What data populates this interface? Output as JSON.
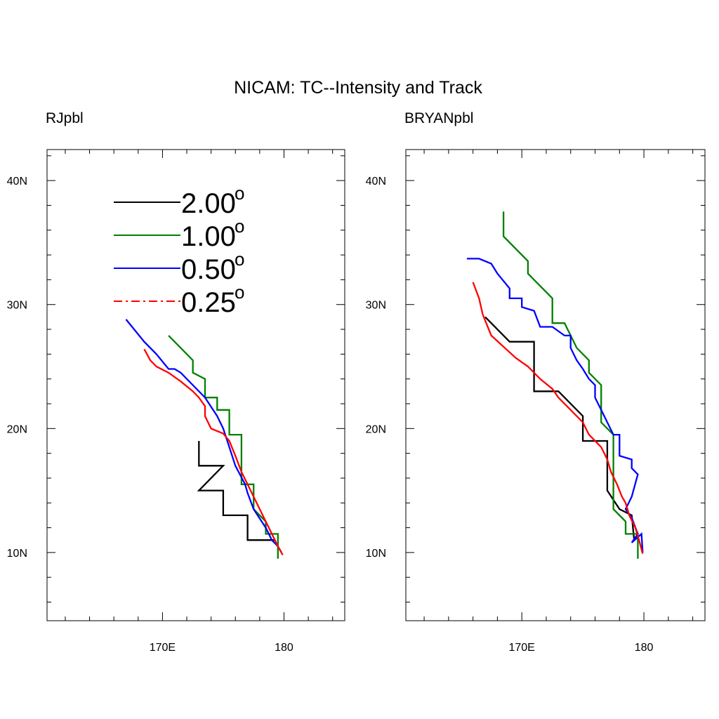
{
  "figure": {
    "title": "NICAM: TC--Intensity and Track"
  },
  "legend": {
    "placement": "top-left of left panel",
    "entries": [
      {
        "label": "2.00",
        "superscript": "o",
        "color": "#000000",
        "dash": "solid"
      },
      {
        "label": "1.00",
        "superscript": "o",
        "color": "#008000",
        "dash": "solid"
      },
      {
        "label": "0.50",
        "superscript": "o",
        "color": "#0000ff",
        "dash": "solid"
      },
      {
        "label": "0.25",
        "superscript": "o",
        "color": "#ff0000",
        "dash": "dashdot"
      }
    ]
  },
  "chart_data": [
    {
      "type": "line",
      "title": "RJpbl",
      "xlim": [
        160.5,
        185
      ],
      "ylim": [
        4.5,
        42.5
      ],
      "xticks": [
        {
          "value": 170,
          "label": "170E"
        },
        {
          "value": 180,
          "label": "180"
        }
      ],
      "yticks": [
        {
          "value": 10,
          "label": "10N"
        },
        {
          "value": 20,
          "label": "20N"
        },
        {
          "value": 30,
          "label": "30N"
        },
        {
          "value": 40,
          "label": "40N"
        }
      ],
      "grid": false,
      "series": [
        {
          "name": "2.00",
          "color": "#000000",
          "points": [
            [
              179.2,
              11.0
            ],
            [
              177.0,
              11.0
            ],
            [
              177.0,
              13.0
            ],
            [
              175.0,
              13.0
            ],
            [
              175.0,
              15.0
            ],
            [
              173.0,
              15.0
            ],
            [
              175.0,
              17.0
            ],
            [
              173.0,
              17.0
            ],
            [
              173.0,
              19.0
            ]
          ]
        },
        {
          "name": "1.00",
          "color": "#008000",
          "points": [
            [
              179.5,
              9.5
            ],
            [
              179.5,
              11.5
            ],
            [
              178.5,
              11.5
            ],
            [
              178.5,
              12.5
            ],
            [
              177.5,
              13.5
            ],
            [
              177.5,
              15.5
            ],
            [
              176.5,
              15.5
            ],
            [
              176.5,
              19.5
            ],
            [
              175.5,
              19.5
            ],
            [
              175.5,
              21.5
            ],
            [
              174.5,
              21.5
            ],
            [
              174.5,
              22.5
            ],
            [
              173.5,
              22.5
            ],
            [
              173.5,
              24.0
            ],
            [
              172.5,
              24.5
            ],
            [
              172.5,
              25.5
            ],
            [
              170.5,
              27.5
            ]
          ]
        },
        {
          "name": "0.50",
          "color": "#0000ff",
          "points": [
            [
              179.8,
              10.0
            ],
            [
              179.5,
              10.5
            ],
            [
              179.0,
              11.0
            ],
            [
              178.5,
              12.0
            ],
            [
              177.5,
              13.5
            ],
            [
              177.0,
              14.8
            ],
            [
              176.8,
              15.5
            ],
            [
              176.0,
              17.0
            ],
            [
              175.5,
              18.5
            ],
            [
              175.0,
              20.0
            ],
            [
              174.5,
              21.0
            ],
            [
              173.5,
              22.5
            ],
            [
              172.5,
              23.5
            ],
            [
              171.5,
              24.5
            ],
            [
              171.0,
              24.8
            ],
            [
              170.5,
              24.8
            ],
            [
              169.5,
              26.0
            ],
            [
              168.5,
              27.0
            ],
            [
              167.0,
              28.8
            ]
          ]
        },
        {
          "name": "0.25",
          "color": "#ff0000",
          "points": [
            [
              179.9,
              9.8
            ],
            [
              179.5,
              10.5
            ],
            [
              179.0,
              11.5
            ],
            [
              178.5,
              12.5
            ],
            [
              178.0,
              13.5
            ],
            [
              177.5,
              14.5
            ],
            [
              177.0,
              15.5
            ],
            [
              176.5,
              16.5
            ],
            [
              176.0,
              17.8
            ],
            [
              175.5,
              19.0
            ],
            [
              175.0,
              19.6
            ],
            [
              174.0,
              20.0
            ],
            [
              173.5,
              21.0
            ],
            [
              173.5,
              21.8
            ],
            [
              173.0,
              22.5
            ],
            [
              172.5,
              23.0
            ],
            [
              171.5,
              23.8
            ],
            [
              170.5,
              24.5
            ],
            [
              169.5,
              25.0
            ],
            [
              169.0,
              25.5
            ],
            [
              168.5,
              26.4
            ]
          ]
        }
      ]
    },
    {
      "type": "line",
      "title": "BRYANpbl",
      "xlim": [
        160.5,
        185
      ],
      "ylim": [
        4.5,
        42.5
      ],
      "xticks": [
        {
          "value": 170,
          "label": "170E"
        },
        {
          "value": 180,
          "label": "180"
        }
      ],
      "yticks": [
        {
          "value": 10,
          "label": "10N"
        },
        {
          "value": 20,
          "label": "20N"
        },
        {
          "value": 30,
          "label": "30N"
        },
        {
          "value": 40,
          "label": "40N"
        }
      ],
      "grid": false,
      "series": [
        {
          "name": "2.00",
          "color": "#000000",
          "points": [
            [
              179.2,
              11.0
            ],
            [
              179.0,
              13.0
            ],
            [
              178.0,
              13.5
            ],
            [
              177.0,
              15.0
            ],
            [
              177.0,
              19.0
            ],
            [
              175.0,
              19.0
            ],
            [
              175.0,
              21.0
            ],
            [
              173.0,
              23.0
            ],
            [
              171.0,
              23.0
            ],
            [
              171.0,
              27.0
            ],
            [
              169.0,
              27.0
            ],
            [
              167.0,
              29.0
            ]
          ]
        },
        {
          "name": "1.00",
          "color": "#008000",
          "points": [
            [
              179.5,
              9.5
            ],
            [
              179.5,
              11.5
            ],
            [
              178.5,
              11.5
            ],
            [
              178.5,
              12.5
            ],
            [
              177.5,
              13.5
            ],
            [
              177.5,
              19.5
            ],
            [
              176.5,
              20.5
            ],
            [
              176.5,
              23.5
            ],
            [
              175.5,
              24.5
            ],
            [
              175.5,
              25.5
            ],
            [
              174.5,
              26.5
            ],
            [
              173.5,
              28.5
            ],
            [
              172.5,
              28.5
            ],
            [
              172.5,
              30.5
            ],
            [
              170.5,
              32.5
            ],
            [
              170.5,
              33.5
            ],
            [
              168.5,
              35.5
            ],
            [
              168.5,
              37.5
            ]
          ]
        },
        {
          "name": "0.50",
          "color": "#0000ff",
          "points": [
            [
              179.9,
              10.0
            ],
            [
              179.8,
              11.5
            ],
            [
              179.0,
              10.8
            ],
            [
              179.5,
              11.5
            ],
            [
              179.0,
              12.8
            ],
            [
              178.5,
              13.5
            ],
            [
              179.0,
              14.5
            ],
            [
              179.5,
              16.3
            ],
            [
              179.0,
              16.8
            ],
            [
              179.0,
              17.5
            ],
            [
              178.0,
              17.8
            ],
            [
              178.0,
              19.5
            ],
            [
              177.5,
              19.5
            ],
            [
              176.5,
              21.5
            ],
            [
              176.0,
              22.5
            ],
            [
              176.0,
              23.5
            ],
            [
              175.5,
              24.0
            ],
            [
              175.0,
              24.8
            ],
            [
              174.5,
              25.5
            ],
            [
              174.0,
              26.5
            ],
            [
              174.0,
              27.5
            ],
            [
              173.5,
              27.5
            ],
            [
              172.5,
              28.2
            ],
            [
              171.5,
              28.2
            ],
            [
              171.0,
              29.5
            ],
            [
              170.0,
              29.8
            ],
            [
              170.0,
              30.5
            ],
            [
              169.0,
              30.5
            ],
            [
              169.0,
              31.3
            ],
            [
              168.0,
              32.5
            ],
            [
              167.5,
              33.3
            ],
            [
              166.5,
              33.7
            ],
            [
              165.5,
              33.7
            ]
          ]
        },
        {
          "name": "0.25",
          "color": "#ff0000",
          "points": [
            [
              179.9,
              9.9
            ],
            [
              179.6,
              11.0
            ],
            [
              179.3,
              12.0
            ],
            [
              178.8,
              13.0
            ],
            [
              178.5,
              14.0
            ],
            [
              178.2,
              14.5
            ],
            [
              177.8,
              15.5
            ],
            [
              177.3,
              16.5
            ],
            [
              177.0,
              17.5
            ],
            [
              176.5,
              18.5
            ],
            [
              175.5,
              19.5
            ],
            [
              175.0,
              20.5
            ],
            [
              174.0,
              21.5
            ],
            [
              173.0,
              22.5
            ],
            [
              172.5,
              23.2
            ],
            [
              171.5,
              24.0
            ],
            [
              170.5,
              25.0
            ],
            [
              169.5,
              25.7
            ],
            [
              168.5,
              26.6
            ],
            [
              167.5,
              27.5
            ],
            [
              166.8,
              29.2
            ],
            [
              166.5,
              30.5
            ],
            [
              166.0,
              31.8
            ]
          ]
        }
      ]
    }
  ]
}
